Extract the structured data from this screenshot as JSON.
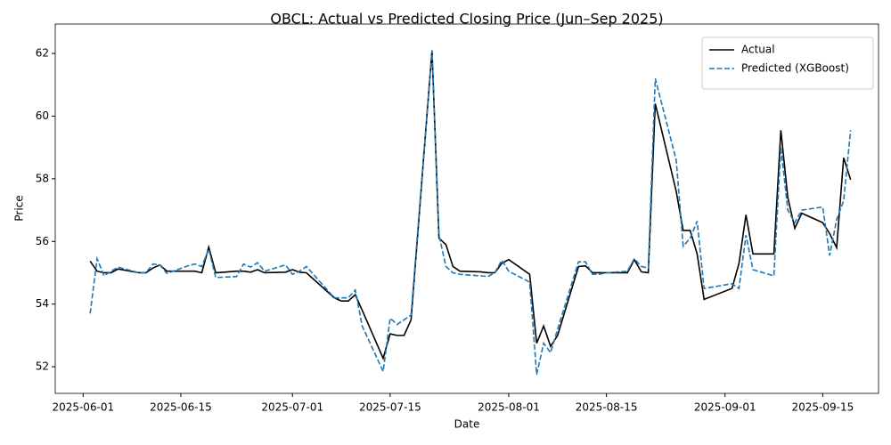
{
  "chart_data": {
    "type": "line",
    "title": "OBCL: Actual vs Predicted Closing Price (Jun–Sep 2025)",
    "x_label": "Date",
    "y_label": "Price",
    "x": [
      "2025-06-02",
      "2025-06-03",
      "2025-06-04",
      "2025-06-05",
      "2025-06-06",
      "2025-06-09",
      "2025-06-10",
      "2025-06-11",
      "2025-06-12",
      "2025-06-13",
      "2025-06-16",
      "2025-06-17",
      "2025-06-18",
      "2025-06-19",
      "2025-06-20",
      "2025-06-23",
      "2025-06-24",
      "2025-06-25",
      "2025-06-26",
      "2025-06-27",
      "2025-06-30",
      "2025-07-01",
      "2025-07-02",
      "2025-07-03",
      "2025-07-07",
      "2025-07-08",
      "2025-07-09",
      "2025-07-10",
      "2025-07-11",
      "2025-07-14",
      "2025-07-15",
      "2025-07-16",
      "2025-07-17",
      "2025-07-18",
      "2025-07-21",
      "2025-07-22",
      "2025-07-23",
      "2025-07-24",
      "2025-07-25",
      "2025-07-28",
      "2025-07-29",
      "2025-07-30",
      "2025-07-31",
      "2025-08-01",
      "2025-08-04",
      "2025-08-05",
      "2025-08-06",
      "2025-08-07",
      "2025-08-08",
      "2025-08-11",
      "2025-08-12",
      "2025-08-13",
      "2025-08-14",
      "2025-08-15",
      "2025-08-18",
      "2025-08-19",
      "2025-08-20",
      "2025-08-21",
      "2025-08-22",
      "2025-08-25",
      "2025-08-26",
      "2025-08-27",
      "2025-08-28",
      "2025-08-29",
      "2025-09-02",
      "2025-09-03",
      "2025-09-04",
      "2025-09-05",
      "2025-09-08",
      "2025-09-09",
      "2025-09-10",
      "2025-09-11",
      "2025-09-12",
      "2025-09-15",
      "2025-09-16",
      "2025-09-17",
      "2025-09-18",
      "2025-09-19"
    ],
    "series": [
      {
        "name": "Actual",
        "color": "#000000",
        "linestyle": "solid",
        "values": [
          55.37,
          55.05,
          55.0,
          55.0,
          55.12,
          55.0,
          55.0,
          55.15,
          55.25,
          55.05,
          55.05,
          55.05,
          55.0,
          55.82,
          55.0,
          55.05,
          55.05,
          55.02,
          55.1,
          55.0,
          55.02,
          55.1,
          55.02,
          55.0,
          54.2,
          54.1,
          54.1,
          54.3,
          53.8,
          52.27,
          53.05,
          53.0,
          53.0,
          53.5,
          62.1,
          56.1,
          55.9,
          55.2,
          55.05,
          55.03,
          55.0,
          55.0,
          55.3,
          55.42,
          54.95,
          52.75,
          53.3,
          52.65,
          53.0,
          55.2,
          55.22,
          55.0,
          55.0,
          55.0,
          55.0,
          55.42,
          55.03,
          55.0,
          60.4,
          57.6,
          56.35,
          56.35,
          55.6,
          54.15,
          54.5,
          55.3,
          56.85,
          55.6,
          55.6,
          59.55,
          57.4,
          56.42,
          56.9,
          56.6,
          56.25,
          55.8,
          58.67,
          57.97
        ]
      },
      {
        "name": "Predicted (XGBoost)",
        "color": "#1f77b4",
        "linestyle": "dashed",
        "values": [
          53.7,
          55.45,
          54.9,
          55.05,
          55.18,
          55.0,
          55.0,
          55.28,
          55.25,
          54.98,
          55.22,
          55.28,
          55.2,
          55.75,
          54.85,
          54.88,
          55.28,
          55.18,
          55.32,
          55.05,
          55.25,
          54.95,
          55.05,
          55.2,
          54.2,
          54.2,
          54.2,
          54.45,
          53.3,
          51.85,
          53.55,
          53.35,
          53.5,
          53.65,
          62.1,
          56.2,
          55.2,
          55.0,
          54.95,
          54.9,
          54.88,
          55.0,
          55.4,
          55.05,
          54.7,
          51.75,
          52.75,
          52.45,
          53.2,
          55.35,
          55.35,
          54.95,
          54.95,
          55.0,
          55.05,
          55.45,
          55.2,
          55.15,
          61.2,
          58.6,
          55.85,
          56.1,
          56.65,
          54.5,
          54.65,
          54.5,
          56.2,
          55.1,
          54.9,
          59.0,
          57.0,
          56.6,
          57.0,
          57.1,
          55.55,
          56.7,
          57.3,
          59.55
        ]
      }
    ],
    "xlim": [
      "2025-05-28",
      "2025-09-23"
    ],
    "xticks": [
      "2025-06-01",
      "2025-06-15",
      "2025-07-01",
      "2025-07-15",
      "2025-08-01",
      "2025-08-15",
      "2025-09-01",
      "2025-09-15"
    ],
    "ylim": [
      51.15,
      62.94
    ],
    "yticks": [
      52,
      54,
      56,
      58,
      60,
      62
    ],
    "legend": "upper right"
  }
}
